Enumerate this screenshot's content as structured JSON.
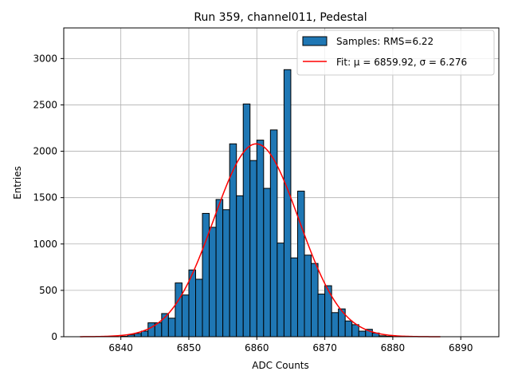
{
  "chart_data": {
    "type": "bar",
    "title": "Run 359, channel011, Pedestal",
    "xlabel": "ADC Counts",
    "ylabel": "Entries",
    "xlim": [
      6831.6,
      6895.6
    ],
    "ylim": [
      0,
      3330
    ],
    "xticks": [
      6840,
      6850,
      6860,
      6870,
      6880,
      6890
    ],
    "yticks": [
      0,
      500,
      1000,
      1500,
      2000,
      2500,
      3000
    ],
    "grid": true,
    "legend_position": "top-right",
    "bin_edges_start": 6840,
    "bin_width": 1,
    "hist_values": [
      5,
      20,
      35,
      60,
      150,
      150,
      250,
      200,
      580,
      450,
      720,
      620,
      1330,
      1180,
      1480,
      1370,
      2080,
      1520,
      2510,
      1900,
      2120,
      1600,
      2230,
      1010,
      2880,
      850,
      1570,
      880,
      790,
      460,
      550,
      260,
      300,
      170,
      130,
      60,
      80,
      40,
      10,
      5
    ],
    "fit": {
      "type": "gaussian",
      "mu": 6859.92,
      "sigma": 6.276,
      "x_range": [
        6834,
        6887
      ],
      "peak": 2080
    },
    "series": [
      {
        "name": "Samples: RMS=6.22",
        "color": "#1f77b4",
        "edge_color": "#000000"
      },
      {
        "name": "Fit: μ = 6859.92, σ = 6.276",
        "color": "#ff0000"
      }
    ]
  }
}
